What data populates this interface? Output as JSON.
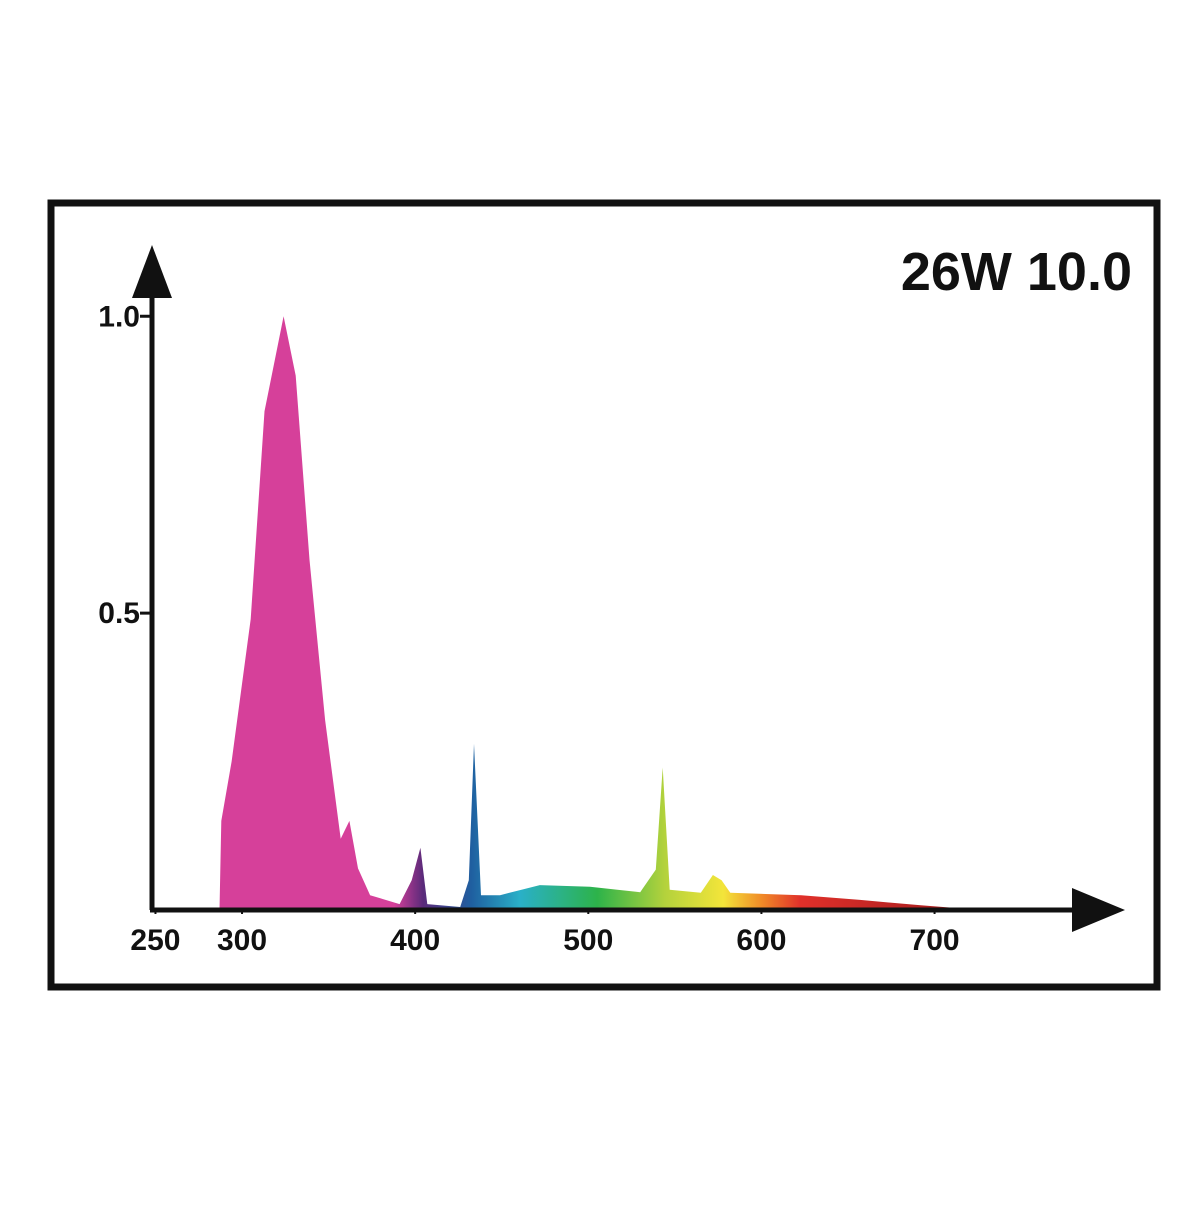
{
  "chart_data": {
    "type": "area",
    "title": "26W 10.0",
    "x": [
      287,
      288,
      294,
      305,
      313,
      324,
      331,
      339,
      348,
      357,
      362,
      367,
      374,
      391,
      398,
      403,
      407,
      426,
      431,
      434,
      438,
      449,
      472,
      501,
      530,
      539,
      543,
      547,
      565,
      572,
      577,
      582,
      623,
      657,
      692,
      727
    ],
    "values": [
      0,
      0.15,
      0.25,
      0.49,
      0.84,
      1.0,
      0.9,
      0.59,
      0.32,
      0.12,
      0.15,
      0.07,
      0.025,
      0.01,
      0.05,
      0.105,
      0.01,
      0.005,
      0.05,
      0.28,
      0.025,
      0.025,
      0.042,
      0.039,
      0.03,
      0.068,
      0.24,
      0.034,
      0.029,
      0.059,
      0.05,
      0.029,
      0.025,
      0.017,
      0.008,
      0
    ],
    "xlim": [
      248,
      810
    ],
    "ylim": [
      0,
      1.12
    ],
    "xticks": [
      250,
      300,
      400,
      500,
      600,
      700
    ],
    "yticks": [
      {
        "value": 1.0,
        "label": "1.0"
      },
      {
        "value": 0.5,
        "label": "0.5"
      }
    ]
  }
}
